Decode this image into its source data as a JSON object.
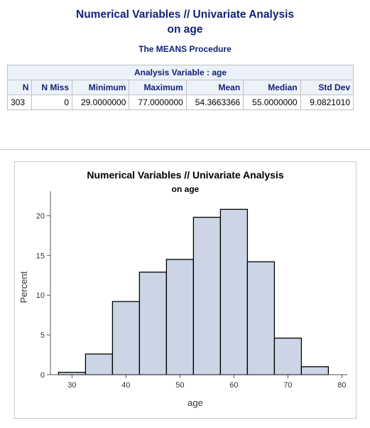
{
  "report": {
    "title_line1": "Numerical Variables // Univariate Analysis",
    "title_line2": "on age",
    "procedure": "The MEANS Procedure"
  },
  "table": {
    "caption": "Analysis Variable : age",
    "headers": [
      "N",
      "N Miss",
      "Minimum",
      "Maximum",
      "Mean",
      "Median",
      "Std Dev"
    ],
    "row": [
      "303",
      "0",
      "29.0000000",
      "77.0000000",
      "54.3663366",
      "55.0000000",
      "9.0821010"
    ]
  },
  "colors": {
    "title": "#112277",
    "header_bg": "#edf2f9",
    "bar_fill": "#cbd5e6",
    "bar_stroke": "#000000"
  },
  "chart_data": {
    "type": "bar",
    "title": "Numerical Variables // Univariate Analysis",
    "subtitle": "on age",
    "xlabel": "age",
    "ylabel": "Percent",
    "bin_width": 5,
    "bins": [
      {
        "start": 27.5,
        "end": 32.5,
        "value": 0.3
      },
      {
        "start": 32.5,
        "end": 37.5,
        "value": 2.6
      },
      {
        "start": 37.5,
        "end": 42.5,
        "value": 9.2
      },
      {
        "start": 42.5,
        "end": 47.5,
        "value": 12.9
      },
      {
        "start": 47.5,
        "end": 52.5,
        "value": 14.5
      },
      {
        "start": 52.5,
        "end": 57.5,
        "value": 19.8
      },
      {
        "start": 57.5,
        "end": 62.5,
        "value": 20.8
      },
      {
        "start": 62.5,
        "end": 67.5,
        "value": 14.2
      },
      {
        "start": 67.5,
        "end": 72.5,
        "value": 4.6
      },
      {
        "start": 72.5,
        "end": 77.5,
        "value": 1.0
      }
    ],
    "xlim": [
      26,
      81
    ],
    "ylim": [
      0,
      22
    ],
    "xticks": [
      30,
      40,
      50,
      60,
      70,
      80
    ],
    "yticks": [
      0,
      5,
      10,
      15,
      20
    ],
    "grid": false,
    "legend": "none"
  }
}
